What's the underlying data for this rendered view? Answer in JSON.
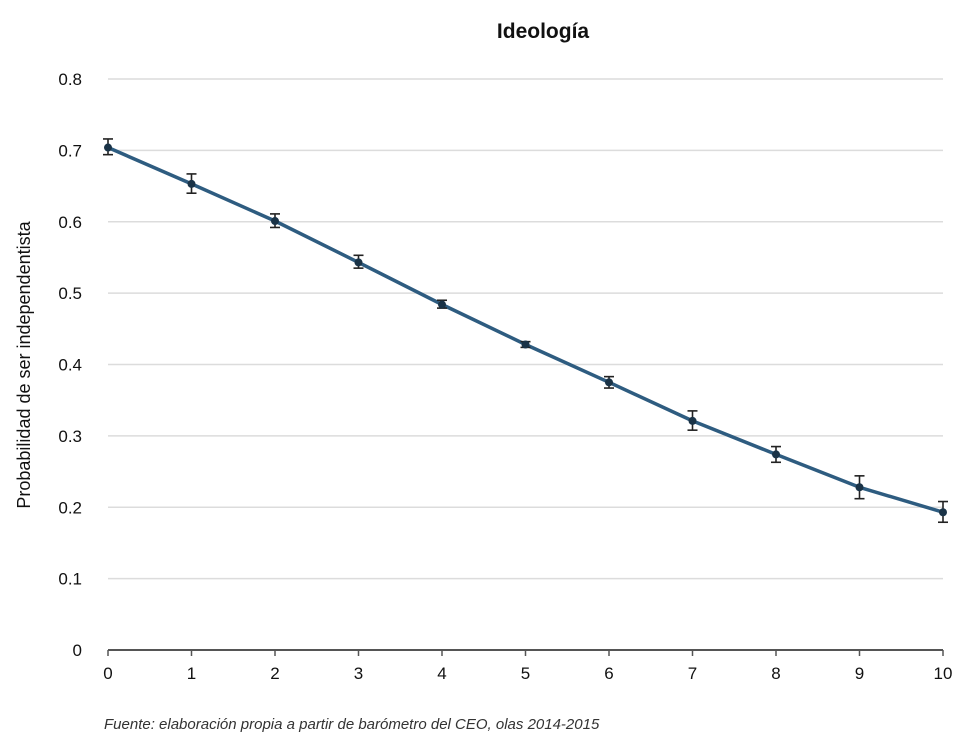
{
  "chart_data": {
    "type": "line",
    "title": "Ideología",
    "xlabel": "",
    "ylabel": "Probabilidad  de ser independentista",
    "x": [
      0,
      1,
      2,
      3,
      4,
      5,
      6,
      7,
      8,
      9,
      10
    ],
    "series": [
      {
        "values": [
          0.704,
          0.653,
          0.601,
          0.543,
          0.484,
          0.428,
          0.375,
          0.321,
          0.274,
          0.228,
          0.193
        ],
        "error_low": [
          0.694,
          0.64,
          0.592,
          0.535,
          0.479,
          0.424,
          0.367,
          0.308,
          0.263,
          0.212,
          0.179
        ],
        "error_high": [
          0.716,
          0.667,
          0.611,
          0.553,
          0.49,
          0.432,
          0.383,
          0.335,
          0.285,
          0.244,
          0.208
        ]
      }
    ],
    "xlim": [
      0,
      10
    ],
    "ylim": [
      0,
      0.8
    ],
    "xticks": [
      "0",
      "1",
      "2",
      "3",
      "4",
      "5",
      "6",
      "7",
      "8",
      "9",
      "10"
    ],
    "yticks": [
      "0",
      "0.1",
      "0.2",
      "0.3",
      "0.4",
      "0.5",
      "0.6",
      "0.7",
      "0.8"
    ],
    "grid": true,
    "line_color": "#2e5c80",
    "marker_color": "#1a3347",
    "grid_color": "#dcdcdc",
    "axis_color": "#555555"
  },
  "source_note": "Fuente: elaboración propia a partir de barómetro del CEO, olas 2014-2015"
}
